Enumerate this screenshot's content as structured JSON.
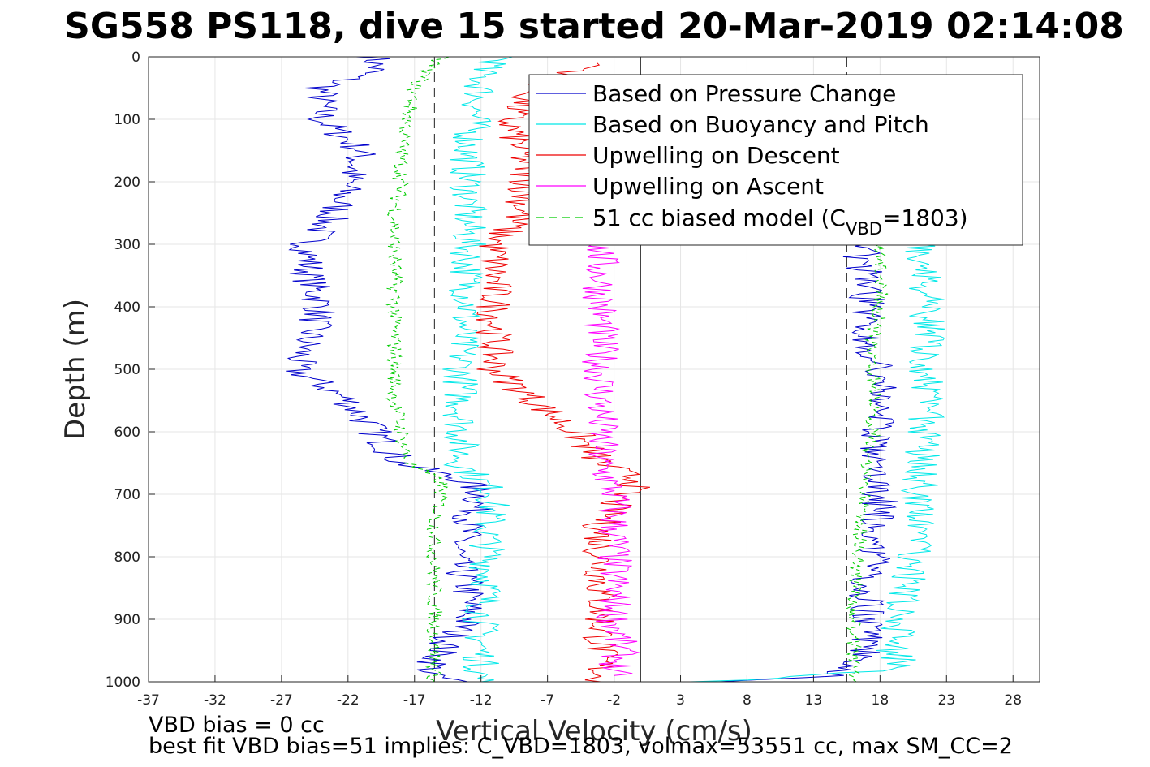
{
  "chart_data": {
    "type": "line",
    "title": "SG558 PS118, dive 15 started 20-Mar-2019 02:14:08",
    "xlabel": "Vertical Velocity (cm/s)",
    "ylabel": "Depth (m)",
    "xlim": [
      -37,
      30
    ],
    "ylim": [
      0,
      1000
    ],
    "y_reversed": true,
    "grid": true,
    "legend_position": "top-right",
    "x_ticks": [
      -37,
      -32,
      -27,
      -22,
      -17,
      -12,
      -7,
      -2,
      3,
      8,
      13,
      18,
      23,
      28
    ],
    "y_ticks": [
      0,
      100,
      200,
      300,
      400,
      500,
      600,
      700,
      800,
      900,
      1000
    ],
    "reference_lines": {
      "dashed_x": [
        -15.5,
        15.5
      ],
      "solid_x": [
        0
      ]
    },
    "legend": {
      "pressure": "Based on Pressure Change",
      "buoyancy": "Based on Buoyancy and Pitch",
      "up_descent": "Upwelling on Descent",
      "up_ascent": "Upwelling on Ascent",
      "model_prefix": "51 cc biased model (C",
      "model_sub": "VBD",
      "model_suffix": "=1803)"
    },
    "series": [
      {
        "name": "Based on Pressure Change",
        "color": "#0000cc",
        "style": "solid",
        "segments": [
          {
            "depth": [
              0,
              20,
              50,
              100,
              150,
              200,
              250,
              300,
              350,
              400,
              450,
              500,
              550,
              600,
              650,
              680,
              700,
              750,
              800,
              850,
              900,
              950,
              990,
              1000
            ],
            "velocity": [
              -20,
              -20,
              -24,
              -24,
              -21,
              -22,
              -23,
              -25,
              -25,
              -24,
              -25,
              -26,
              -22,
              -20,
              -18,
              -13,
              -12,
              -13,
              -14,
              -13,
              -13,
              -15,
              -16,
              -13
            ]
          },
          {
            "depth": [
              1000,
              990,
              950,
              900,
              850,
              800,
              750,
              700,
              650,
              600,
              550,
              500,
              450,
              400,
              350,
              320,
              300
            ],
            "velocity": [
              5,
              15,
              17,
              17,
              17,
              17.5,
              18,
              18,
              17,
              18,
              18,
              18,
              17,
              17,
              17,
              16.5,
              17
            ]
          }
        ]
      },
      {
        "name": "Based on Buoyancy and Pitch",
        "color": "#00e8e8",
        "style": "solid",
        "segments": [
          {
            "depth": [
              0,
              20,
              50,
              100,
              150,
              200,
              250,
              300,
              350,
              400,
              450,
              500,
              550,
              600,
              650,
              680,
              700,
              750,
              800,
              850,
              900,
              950,
              1000
            ],
            "velocity": [
              -10,
              -12,
              -12,
              -12.5,
              -13,
              -13,
              -13,
              -13,
              -13,
              -13,
              -13.5,
              -13.5,
              -13.5,
              -13.5,
              -13.5,
              -12,
              -11,
              -11.5,
              -11.5,
              -11.5,
              -12,
              -12,
              -12
            ]
          },
          {
            "depth": [
              1000,
              980,
              950,
              900,
              850,
              800,
              750,
              700,
              650,
              600,
              550,
              500,
              450,
              400,
              350,
              320,
              300
            ],
            "velocity": [
              5,
              20,
              19,
              19.5,
              20,
              20.5,
              21,
              21,
              21,
              21.5,
              21.5,
              21.5,
              21.5,
              21.5,
              21.5,
              21,
              21
            ]
          }
        ]
      },
      {
        "name": "Upwelling on Descent",
        "color": "#ee0000",
        "style": "solid",
        "segments": [
          {
            "depth": [
              10,
              50,
              100,
              150,
              200,
              250,
              300,
              350,
              400,
              450,
              500,
              550,
              600,
              650,
              680,
              700,
              750,
              800,
              850,
              900,
              950,
              1000
            ],
            "velocity": [
              -3,
              -8,
              -10,
              -9,
              -8.5,
              -9,
              -11,
              -11,
              -11,
              -11,
              -11,
              -8,
              -5,
              -3,
              0,
              -1.5,
              -3,
              -3,
              -3,
              -3,
              -3,
              -3
            ]
          }
        ]
      },
      {
        "name": "Upwelling on Ascent",
        "color": "#ff00ff",
        "style": "solid",
        "segments": [
          {
            "depth": [
              300,
              350,
              400,
              450,
              500,
              550,
              600,
              650,
              700,
              750,
              800,
              850,
              900,
              950,
              990
            ],
            "velocity": [
              -3,
              -3,
              -3,
              -3,
              -3,
              -3,
              -3,
              -3,
              -2,
              -2,
              -2,
              -2,
              -2,
              -1.5,
              -2
            ]
          }
        ]
      },
      {
        "name": "51 cc biased model (CVBD=1803)",
        "color": "#00cc00",
        "style": "dashed",
        "segments": [
          {
            "depth": [
              0,
              20,
              50,
              100,
              150,
              200,
              250,
              300,
              350,
              400,
              450,
              500,
              550,
              600,
              650,
              680,
              700,
              750,
              800,
              850,
              900,
              950,
              1000
            ],
            "velocity": [
              -15,
              -16,
              -17,
              -17.5,
              -18,
              -18,
              -18.5,
              -18.5,
              -18.5,
              -18.5,
              -18.5,
              -18.5,
              -18.5,
              -18,
              -17.5,
              -15,
              -15,
              -15.5,
              -15.5,
              -15.5,
              -15.5,
              -15.5,
              -15.5
            ]
          },
          {
            "depth": [
              1000,
              980,
              950,
              900,
              850,
              800,
              750,
              700,
              650,
              600,
              550,
              500,
              450,
              400,
              350,
              300
            ],
            "velocity": [
              16,
              16,
              16,
              16,
              16,
              16.5,
              16.5,
              17,
              17,
              17.5,
              17.5,
              17.5,
              17.5,
              18,
              18,
              18
            ]
          }
        ]
      }
    ]
  },
  "footer": {
    "line1": "VBD bias = 0 cc",
    "line2": "best fit VBD bias=51 implies: C_VBD=1803, volmax=53551 cc, max SM_CC=2"
  }
}
